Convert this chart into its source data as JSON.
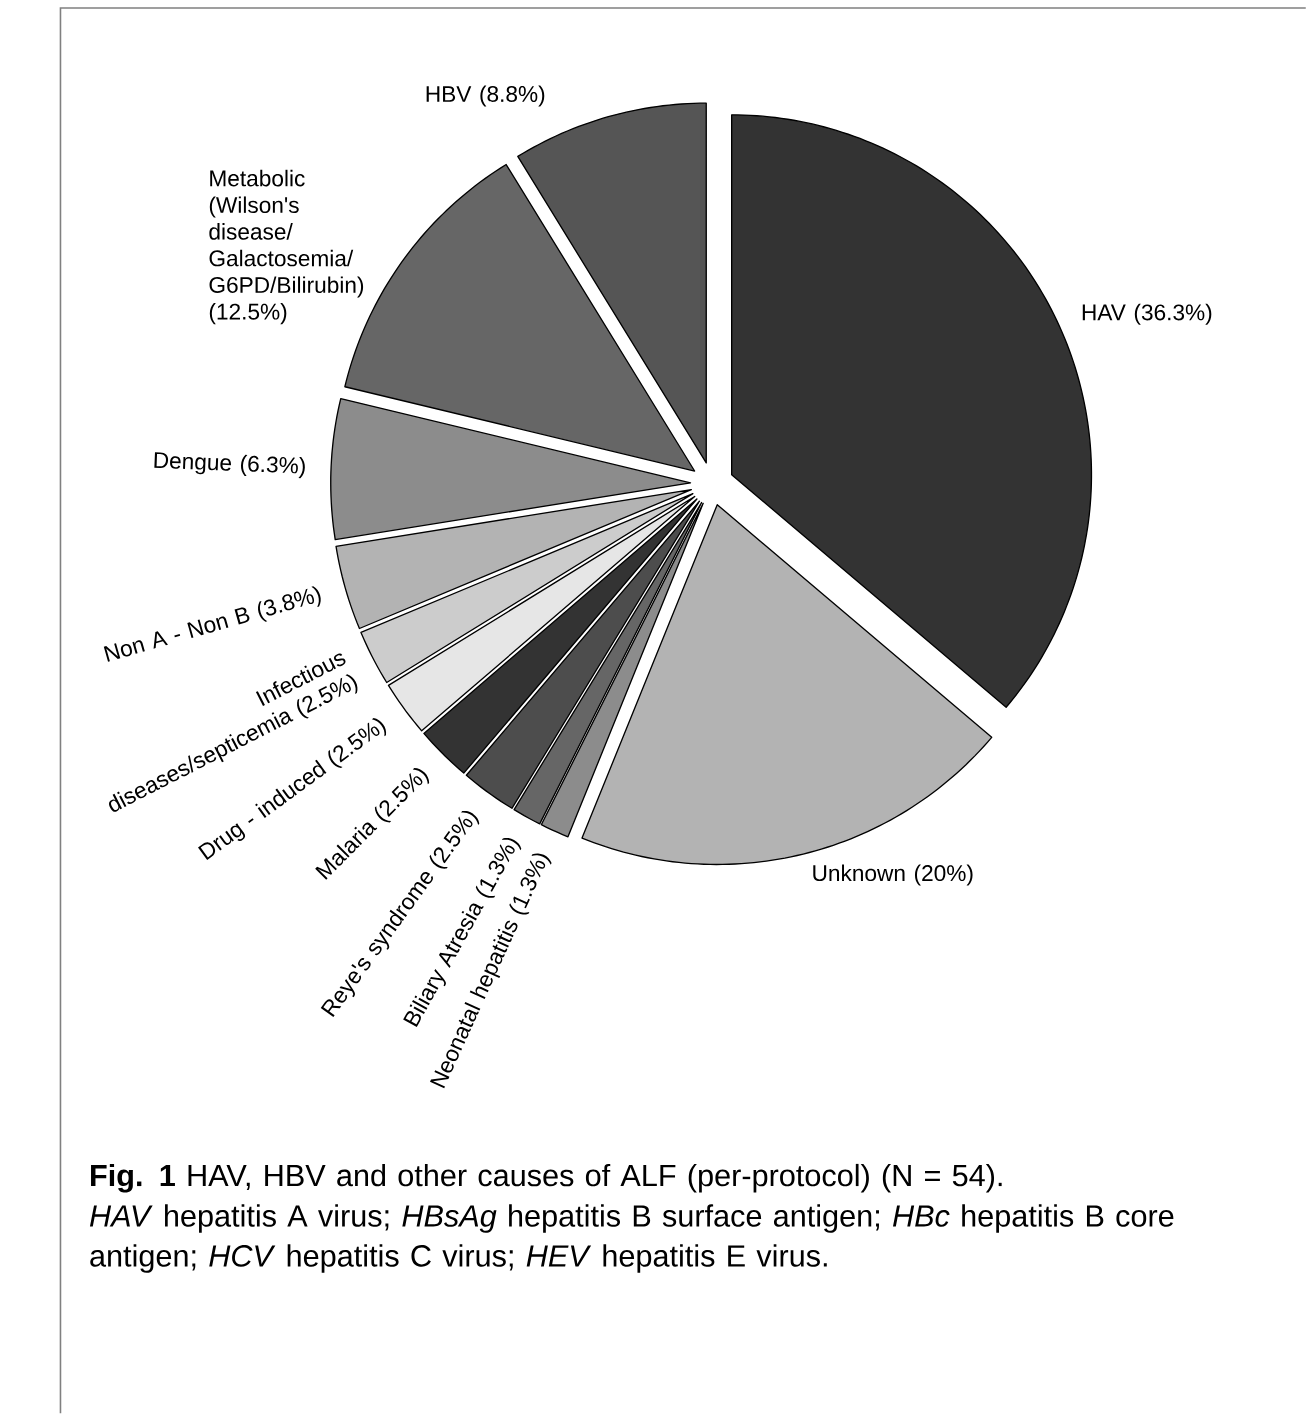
{
  "chart_data": {
    "type": "pie",
    "title": "**Fig. 1** HAV, HBV and other causes of ALF (per-protocol) (N = 54).",
    "annotations": [
      "*HAV* hepatitis A virus; *HBsAg* hepatitis B surface antigen; *HBc* hepatitis B core antigen; *HCV* hepatitis C virus; *HEV* hepatitis E virus."
    ],
    "categories": [
      "HAV",
      "Unknown",
      "Neonatal hepatitis",
      "Biliary Atresia",
      "Reye's syndrome",
      "Malaria",
      "Drug - induced",
      "Infectious diseases/septicemia",
      "Non A - Non B",
      "Dengue",
      "Metabolic (Wilson's disease/ Galactosemia/ G6PD/Bilirubin)",
      "HBV"
    ],
    "values": [
      36.3,
      20,
      1.3,
      1.3,
      2.5,
      2.5,
      2.5,
      2.5,
      3.8,
      6.3,
      12.5,
      8.8
    ],
    "value_labels": [
      "(36.3%)",
      "(20%)",
      "(1.3%)",
      "(1.3%)",
      "(2.5%)",
      "(2.5%)",
      "(2.5%)",
      "(2.5%)",
      "(3.8%)",
      "(6.3%)",
      "(12.5%)",
      "(8.8%)"
    ],
    "colors": [
      "#333333",
      "#b3b3b3",
      "#8c8c8c",
      "#666666",
      "#4d4d4d",
      "#333333",
      "#e6e6e6",
      "#cccccc",
      "#b3b3b3",
      "#8c8c8c",
      "#666666",
      "#555555"
    ]
  }
}
